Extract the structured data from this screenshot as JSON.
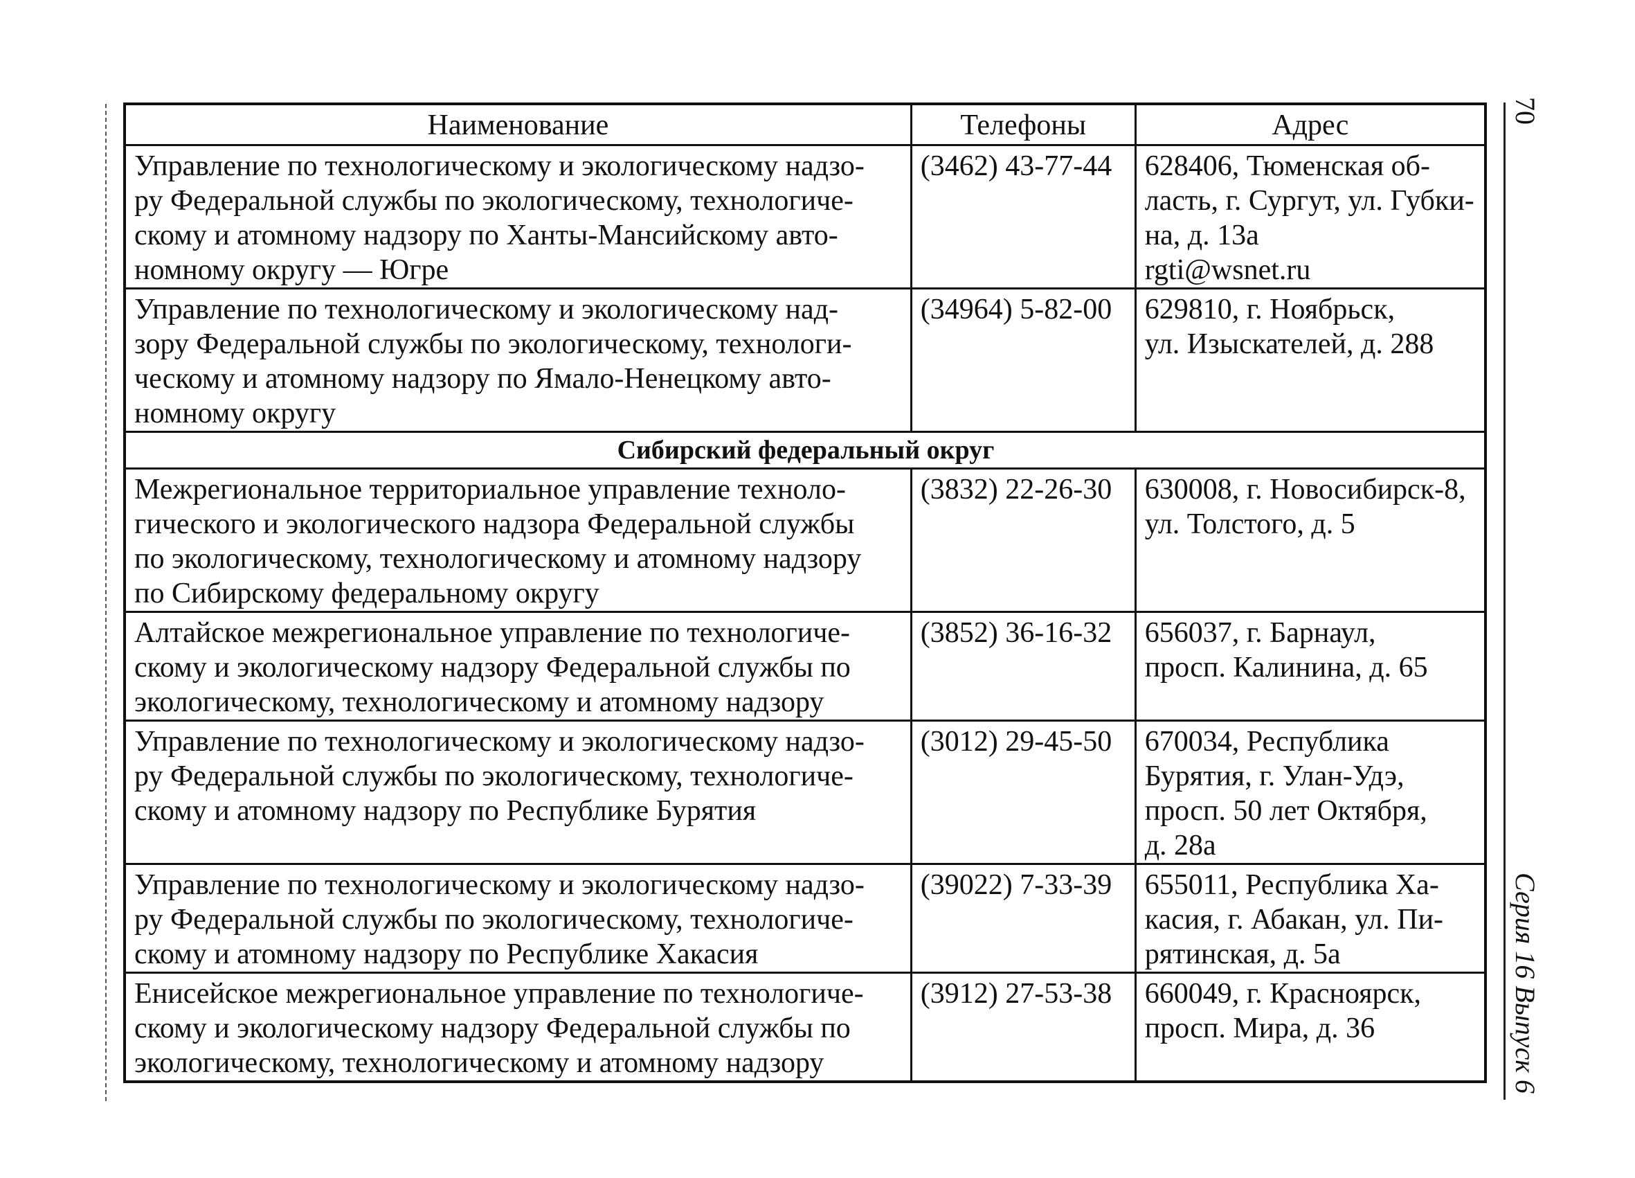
{
  "page_number": "70",
  "series_label": "Серия 16 Выпуск 6",
  "table": {
    "headers": [
      "Наименование",
      "Телефоны",
      "Адрес"
    ],
    "rows": [
      {
        "name": "Управление по технологическому и экологическому надзо-\nру Федеральной службы по экологическому, технологиче-\nскому и атомному надзору по Ханты-Мансийскому авто-\nномному округу — Югре",
        "phone": "(3462) 43-77-44",
        "address": "628406, Тюменская об-\nласть, г. Сургут, ул. Губки-\nна, д. 13а\nrgti@wsnet.ru"
      },
      {
        "name": "Управление по технологическому и экологическому над-\nзору Федеральной службы по экологическому, технологи-\nческому и атомному надзору по Ямало-Ненецкому авто-\nномному округу",
        "phone": "(34964) 5-82-00",
        "address": "629810, г. Ноябрьск,\nул. Изыскателей, д. 288"
      },
      {
        "name": "Межрегиональное территориальное управление техноло-\nгического и экологического надзора Федеральной службы\nпо экологическому, технологическому и атомному надзору\nпо Сибирскому федеральному округу",
        "phone": "(3832) 22-26-30",
        "address": "630008, г. Новосибирск-8,\nул. Толстого, д. 5"
      },
      {
        "name": "Алтайское межрегиональное управление по технологиче-\nскому и экологическому надзору Федеральной службы по\nэкологическому, технологическому и атомному надзору",
        "phone": "(3852) 36-16-32",
        "address": "656037, г. Барнаул,\nпросп. Калинина, д. 65"
      },
      {
        "name": "Управление по технологическому и экологическому надзо-\nру Федеральной службы по экологическому, технологиче-\nскому и атомному надзору по Республике Бурятия",
        "phone": "(3012) 29-45-50",
        "address": "670034, Республика\nБурятия, г. Улан-Удэ,\nпросп. 50 лет Октября,\nд. 28а"
      },
      {
        "name": "Управление по технологическому и экологическому надзо-\nру Федеральной службы по экологическому, технологиче-\nскому и атомному надзору по Республике Хакасия",
        "phone": "(39022) 7-33-39",
        "address": "655011, Республика Ха-\nкасия, г. Абакан, ул. Пи-\nрятинская, д. 5а"
      },
      {
        "name": "Енисейское межрегиональное управление по технологиче-\nскому и экологическому надзору Федеральной службы по\nэкологическому, технологическому и атомному надзору",
        "phone": "(3912) 27-53-38",
        "address": "660049, г. Красноярск,\nпросп. Мира, д. 36"
      }
    ],
    "section_title": "Сибирский федеральный округ"
  }
}
